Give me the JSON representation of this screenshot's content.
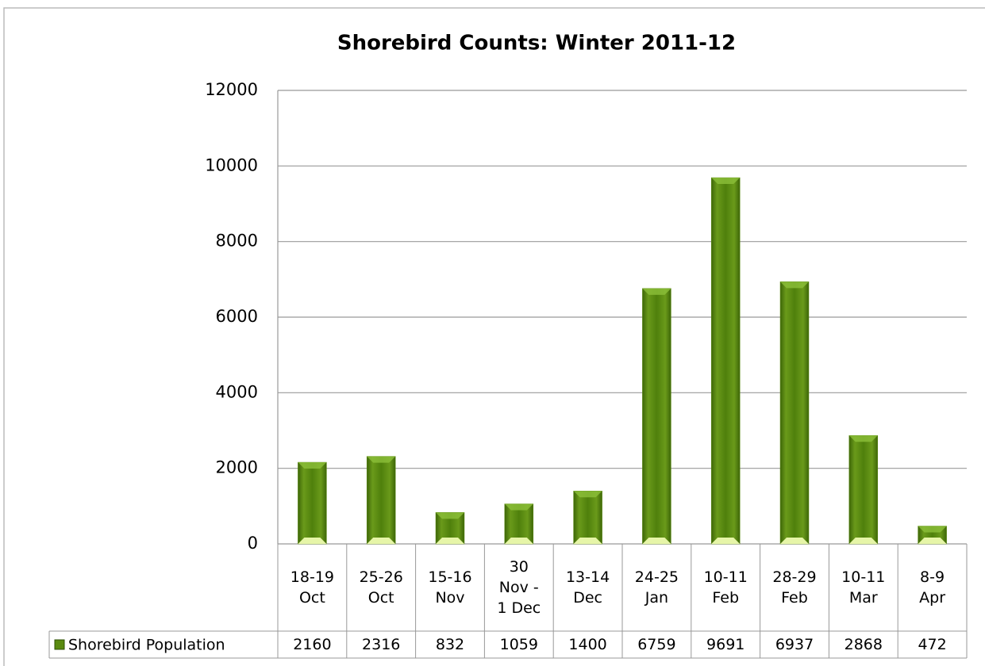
{
  "chart_data": {
    "type": "bar",
    "title": "Shorebird Counts: Winter 2011-12",
    "categories": [
      "18-19 Oct",
      "25-26 Oct",
      "15-16 Nov",
      "30 Nov - 1 Dec",
      "13-14 Dec",
      "24-25 Jan",
      "10-11 Feb",
      "28-29 Feb",
      "10-11 Mar",
      "8-9 Apr"
    ],
    "series": [
      {
        "name": "Shorebird Population",
        "color": "#5a8a10",
        "values": [
          2160,
          2316,
          832,
          1059,
          1400,
          6759,
          9691,
          6937,
          2868,
          472
        ]
      }
    ],
    "ylim": [
      0,
      12000
    ],
    "yticks": [
      0,
      2000,
      4000,
      6000,
      8000,
      10000,
      12000
    ],
    "grid": true,
    "data_table": true
  }
}
